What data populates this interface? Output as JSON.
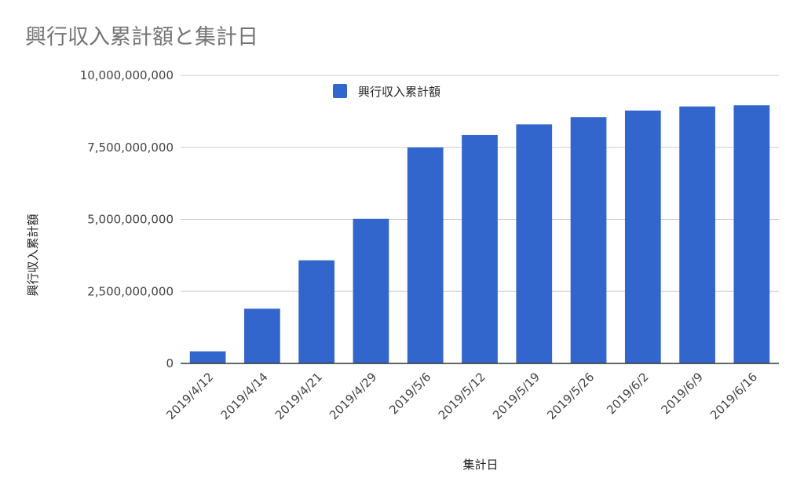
{
  "chart_data": {
    "type": "bar",
    "title": "興行収入累計額と集計日",
    "xlabel": "集計日",
    "ylabel": "興行収入累計額",
    "categories": [
      "2019/4/12",
      "2019/4/14",
      "2019/4/21",
      "2019/4/29",
      "2019/5/6",
      "2019/5/12",
      "2019/5/19",
      "2019/5/26",
      "2019/6/2",
      "2019/6/9",
      "2019/6/16"
    ],
    "series": [
      {
        "name": "興行収入累計額",
        "color": "#3366cc",
        "values": [
          420000000,
          1900000000,
          3580000000,
          5020000000,
          7500000000,
          7930000000,
          8300000000,
          8550000000,
          8780000000,
          8920000000,
          8960000000
        ]
      }
    ],
    "ylim": [
      0,
      10000000000
    ],
    "yticks": [
      0,
      2500000000,
      5000000000,
      7500000000,
      10000000000
    ],
    "ytick_labels": [
      "0",
      "2,500,000,000",
      "5,000,000,000",
      "7,500,000,000",
      "10,000,000,000"
    ],
    "grid": true,
    "legend_position": "top"
  }
}
